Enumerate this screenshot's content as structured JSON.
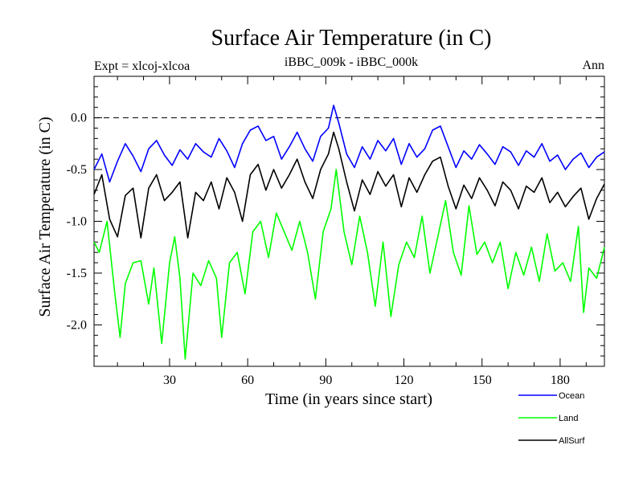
{
  "chart_data": {
    "type": "line",
    "title": "Surface Air Temperature (in C)",
    "subtitle_left": "Expt = xlcoj-xlcoa",
    "subtitle_center": "iBBC_009k - iBBC_000k",
    "subtitle_right": "Ann",
    "xlabel": "Time (in years since start)",
    "ylabel": "Surface Air Temperature (in C)",
    "xlim": [
      1,
      197
    ],
    "ylim": [
      -2.4,
      0.4
    ],
    "xticks": [
      30,
      60,
      90,
      120,
      150,
      180
    ],
    "xtick_labels": [
      "30",
      "60",
      "90",
      "120",
      "150",
      "180"
    ],
    "yticks": [
      -2.0,
      -1.5,
      -1.0,
      -0.5,
      0.0
    ],
    "ytick_labels": [
      "-2.0",
      "-1.5",
      "-1.0",
      "-0.5",
      "0.0"
    ],
    "reference_line": 0.0,
    "legend_position": "bottom-right",
    "series": [
      {
        "name": "Ocean",
        "color": "#0000ff",
        "points": [
          [
            1,
            -0.5
          ],
          [
            4,
            -0.35
          ],
          [
            7,
            -0.62
          ],
          [
            10,
            -0.42
          ],
          [
            13,
            -0.25
          ],
          [
            16,
            -0.37
          ],
          [
            19,
            -0.52
          ],
          [
            22,
            -0.3
          ],
          [
            25,
            -0.22
          ],
          [
            28,
            -0.36
          ],
          [
            31,
            -0.46
          ],
          [
            34,
            -0.31
          ],
          [
            37,
            -0.4
          ],
          [
            40,
            -0.25
          ],
          [
            43,
            -0.33
          ],
          [
            46,
            -0.38
          ],
          [
            49,
            -0.2
          ],
          [
            52,
            -0.32
          ],
          [
            55,
            -0.48
          ],
          [
            58,
            -0.25
          ],
          [
            61,
            -0.12
          ],
          [
            64,
            -0.08
          ],
          [
            67,
            -0.22
          ],
          [
            70,
            -0.18
          ],
          [
            73,
            -0.4
          ],
          [
            76,
            -0.28
          ],
          [
            79,
            -0.14
          ],
          [
            82,
            -0.3
          ],
          [
            85,
            -0.42
          ],
          [
            88,
            -0.18
          ],
          [
            91,
            -0.1
          ],
          [
            93,
            0.12
          ],
          [
            95,
            -0.05
          ],
          [
            98,
            -0.35
          ],
          [
            101,
            -0.48
          ],
          [
            104,
            -0.28
          ],
          [
            107,
            -0.4
          ],
          [
            110,
            -0.22
          ],
          [
            113,
            -0.32
          ],
          [
            116,
            -0.2
          ],
          [
            119,
            -0.45
          ],
          [
            122,
            -0.25
          ],
          [
            125,
            -0.38
          ],
          [
            128,
            -0.3
          ],
          [
            131,
            -0.12
          ],
          [
            134,
            -0.08
          ],
          [
            137,
            -0.28
          ],
          [
            140,
            -0.48
          ],
          [
            143,
            -0.32
          ],
          [
            146,
            -0.4
          ],
          [
            149,
            -0.26
          ],
          [
            152,
            -0.35
          ],
          [
            155,
            -0.45
          ],
          [
            158,
            -0.28
          ],
          [
            161,
            -0.33
          ],
          [
            164,
            -0.46
          ],
          [
            167,
            -0.32
          ],
          [
            170,
            -0.38
          ],
          [
            173,
            -0.25
          ],
          [
            176,
            -0.42
          ],
          [
            179,
            -0.36
          ],
          [
            182,
            -0.5
          ],
          [
            185,
            -0.4
          ],
          [
            188,
            -0.34
          ],
          [
            191,
            -0.48
          ],
          [
            194,
            -0.38
          ],
          [
            197,
            -0.33
          ]
        ]
      },
      {
        "name": "Land",
        "color": "#00ff00",
        "points": [
          [
            1,
            -1.2
          ],
          [
            3,
            -1.3
          ],
          [
            6,
            -1.0
          ],
          [
            9,
            -1.7
          ],
          [
            11,
            -2.12
          ],
          [
            13,
            -1.6
          ],
          [
            16,
            -1.4
          ],
          [
            19,
            -1.38
          ],
          [
            22,
            -1.8
          ],
          [
            24,
            -1.45
          ],
          [
            27,
            -2.18
          ],
          [
            30,
            -1.4
          ],
          [
            32,
            -1.15
          ],
          [
            34,
            -1.55
          ],
          [
            36,
            -2.33
          ],
          [
            39,
            -1.5
          ],
          [
            42,
            -1.62
          ],
          [
            45,
            -1.38
          ],
          [
            48,
            -1.55
          ],
          [
            50,
            -2.12
          ],
          [
            53,
            -1.4
          ],
          [
            56,
            -1.3
          ],
          [
            59,
            -1.7
          ],
          [
            62,
            -1.1
          ],
          [
            65,
            -1.0
          ],
          [
            68,
            -1.35
          ],
          [
            71,
            -0.92
          ],
          [
            74,
            -1.1
          ],
          [
            77,
            -1.28
          ],
          [
            80,
            -1.0
          ],
          [
            83,
            -1.3
          ],
          [
            86,
            -1.75
          ],
          [
            89,
            -1.1
          ],
          [
            92,
            -0.88
          ],
          [
            94,
            -0.5
          ],
          [
            97,
            -1.1
          ],
          [
            100,
            -1.42
          ],
          [
            103,
            -0.95
          ],
          [
            106,
            -1.3
          ],
          [
            109,
            -1.82
          ],
          [
            112,
            -1.2
          ],
          [
            115,
            -1.92
          ],
          [
            118,
            -1.42
          ],
          [
            121,
            -1.2
          ],
          [
            124,
            -1.35
          ],
          [
            127,
            -0.95
          ],
          [
            130,
            -1.5
          ],
          [
            133,
            -1.15
          ],
          [
            136,
            -0.8
          ],
          [
            139,
            -1.3
          ],
          [
            142,
            -1.52
          ],
          [
            145,
            -0.85
          ],
          [
            148,
            -1.32
          ],
          [
            151,
            -1.2
          ],
          [
            154,
            -1.4
          ],
          [
            157,
            -1.2
          ],
          [
            160,
            -1.65
          ],
          [
            163,
            -1.3
          ],
          [
            166,
            -1.52
          ],
          [
            169,
            -1.25
          ],
          [
            172,
            -1.58
          ],
          [
            175,
            -1.12
          ],
          [
            178,
            -1.48
          ],
          [
            181,
            -1.4
          ],
          [
            184,
            -1.58
          ],
          [
            187,
            -1.05
          ],
          [
            189,
            -1.88
          ],
          [
            191,
            -1.45
          ],
          [
            194,
            -1.55
          ],
          [
            197,
            -1.25
          ]
        ]
      },
      {
        "name": "AllSurf",
        "color": "#000000",
        "points": [
          [
            1,
            -0.74
          ],
          [
            4,
            -0.55
          ],
          [
            7,
            -0.98
          ],
          [
            10,
            -1.15
          ],
          [
            13,
            -0.75
          ],
          [
            16,
            -0.68
          ],
          [
            19,
            -1.16
          ],
          [
            22,
            -0.68
          ],
          [
            25,
            -0.55
          ],
          [
            28,
            -0.8
          ],
          [
            31,
            -0.72
          ],
          [
            34,
            -0.62
          ],
          [
            37,
            -1.16
          ],
          [
            40,
            -0.72
          ],
          [
            43,
            -0.8
          ],
          [
            46,
            -0.62
          ],
          [
            49,
            -0.88
          ],
          [
            52,
            -0.58
          ],
          [
            55,
            -0.72
          ],
          [
            58,
            -1.0
          ],
          [
            61,
            -0.55
          ],
          [
            64,
            -0.45
          ],
          [
            67,
            -0.7
          ],
          [
            70,
            -0.5
          ],
          [
            73,
            -0.68
          ],
          [
            76,
            -0.55
          ],
          [
            79,
            -0.4
          ],
          [
            82,
            -0.62
          ],
          [
            85,
            -0.78
          ],
          [
            88,
            -0.5
          ],
          [
            91,
            -0.35
          ],
          [
            93,
            -0.14
          ],
          [
            95,
            -0.3
          ],
          [
            98,
            -0.62
          ],
          [
            101,
            -0.9
          ],
          [
            104,
            -0.6
          ],
          [
            107,
            -0.74
          ],
          [
            110,
            -0.52
          ],
          [
            113,
            -0.66
          ],
          [
            116,
            -0.55
          ],
          [
            119,
            -0.86
          ],
          [
            122,
            -0.58
          ],
          [
            125,
            -0.72
          ],
          [
            128,
            -0.55
          ],
          [
            131,
            -0.42
          ],
          [
            134,
            -0.38
          ],
          [
            137,
            -0.66
          ],
          [
            140,
            -0.88
          ],
          [
            143,
            -0.65
          ],
          [
            146,
            -0.78
          ],
          [
            149,
            -0.58
          ],
          [
            152,
            -0.7
          ],
          [
            155,
            -0.85
          ],
          [
            158,
            -0.62
          ],
          [
            161,
            -0.7
          ],
          [
            164,
            -0.88
          ],
          [
            167,
            -0.66
          ],
          [
            170,
            -0.72
          ],
          [
            173,
            -0.58
          ],
          [
            176,
            -0.82
          ],
          [
            179,
            -0.72
          ],
          [
            182,
            -0.86
          ],
          [
            185,
            -0.76
          ],
          [
            188,
            -0.68
          ],
          [
            191,
            -0.98
          ],
          [
            194,
            -0.78
          ],
          [
            197,
            -0.64
          ]
        ]
      }
    ]
  }
}
